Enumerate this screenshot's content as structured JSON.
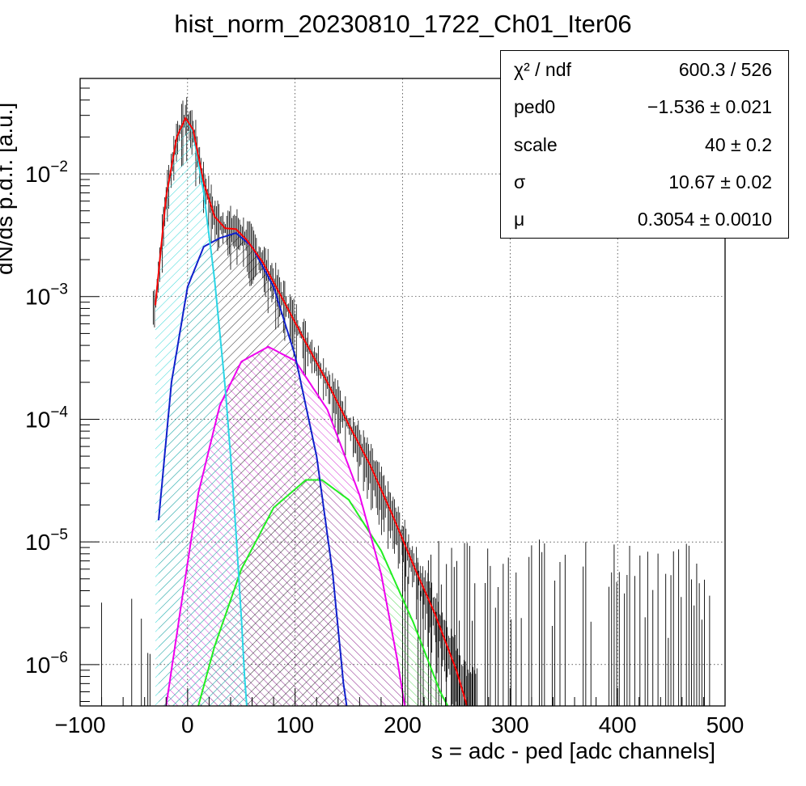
{
  "chart_data": {
    "type": "histogram",
    "title": "hist_norm_20230810_1722_Ch01_Iter06",
    "xlabel": "s = adc - ped [adc channels]",
    "ylabel": "dN/ds p.d.f. [a.u.]",
    "xlim": [
      -100,
      500
    ],
    "ylim": [
      4.6e-07,
      0.06
    ],
    "yscale": "log",
    "grid": true,
    "x_ticks": [
      "−100",
      "0",
      "100",
      "200",
      "300",
      "400",
      "500"
    ],
    "y_ticks": [
      {
        "base": "10",
        "exp": "−6",
        "value": 1e-06
      },
      {
        "base": "10",
        "exp": "−5",
        "value": 1e-05
      },
      {
        "base": "10",
        "exp": "−4",
        "value": 0.0001
      },
      {
        "base": "10",
        "exp": "−3",
        "value": 0.001
      },
      {
        "base": "10",
        "exp": "−2",
        "value": 0.01
      }
    ],
    "fit_parameters": {
      "ped0": -1.536,
      "scale": 40,
      "sigma": 10.67,
      "mu": 0.3054
    },
    "series": [
      {
        "color": "#ff0000",
        "points": [
          [
            -30,
            0.00085
          ],
          [
            -20,
            0.0065
          ],
          [
            -10,
            0.02
          ],
          [
            -2,
            0.0285
          ],
          [
            5,
            0.023
          ],
          [
            15,
            0.0085
          ],
          [
            25,
            0.0045
          ],
          [
            35,
            0.0036
          ],
          [
            45,
            0.00355
          ],
          [
            55,
            0.0029
          ],
          [
            70,
            0.0019
          ],
          [
            90,
            0.0009
          ],
          [
            110,
            0.00042
          ],
          [
            130,
            0.0002
          ],
          [
            150,
            9e-05
          ],
          [
            170,
            4.2e-05
          ],
          [
            190,
            1.7e-05
          ],
          [
            210,
            6.5e-06
          ],
          [
            230,
            2.6e-06
          ],
          [
            250,
            9e-07
          ],
          [
            260,
            4.6e-07
          ]
        ]
      },
      {
        "color": "#00ffff",
        "points": [
          [
            -30,
            0.00085
          ],
          [
            -20,
            0.0063
          ],
          [
            -10,
            0.0198
          ],
          [
            -2,
            0.0285
          ],
          [
            5,
            0.022
          ],
          [
            15,
            0.007
          ],
          [
            25,
            0.0014
          ],
          [
            35,
            0.00018
          ],
          [
            40,
            5e-05
          ],
          [
            45,
            1.2e-05
          ],
          [
            50,
            2.4e-06
          ],
          [
            53,
            8e-07
          ],
          [
            55,
            4.6e-07
          ]
        ]
      },
      {
        "color": "#0000ff",
        "points": [
          [
            -27,
            1.5e-05
          ],
          [
            -15,
            0.0002
          ],
          [
            0,
            0.0012
          ],
          [
            15,
            0.00255
          ],
          [
            30,
            0.003
          ],
          [
            45,
            0.0033
          ],
          [
            60,
            0.00255
          ],
          [
            80,
            0.0012
          ],
          [
            100,
            0.00033
          ],
          [
            120,
            5e-05
          ],
          [
            135,
            5.5e-06
          ],
          [
            145,
            7e-07
          ],
          [
            148,
            4.6e-07
          ]
        ]
      },
      {
        "color": "#ff00ff",
        "points": [
          [
            -20,
            4.6e-07
          ],
          [
            -5,
            3.5e-06
          ],
          [
            10,
            2.5e-05
          ],
          [
            30,
            0.00013
          ],
          [
            50,
            0.000295
          ],
          [
            75,
            0.00039
          ],
          [
            100,
            0.0003
          ],
          [
            130,
            0.00012
          ],
          [
            160,
            2.4e-05
          ],
          [
            180,
            5.5e-06
          ],
          [
            195,
            1.1e-06
          ],
          [
            202,
            4.6e-07
          ]
        ]
      },
      {
        "color": "#00ff00",
        "points": [
          [
            10,
            4.6e-07
          ],
          [
            25,
            1.4e-06
          ],
          [
            50,
            6e-06
          ],
          [
            80,
            1.9e-05
          ],
          [
            110,
            3.2e-05
          ],
          [
            125,
            3.2e-05
          ],
          [
            150,
            2.2e-05
          ],
          [
            180,
            8.5e-06
          ],
          [
            210,
            2.2e-06
          ],
          [
            235,
            6e-07
          ],
          [
            242,
            4.6e-07
          ]
        ]
      }
    ]
  },
  "stats_box": {
    "rows": [
      {
        "name": "χ² / ndf",
        "value": "600.3 / 526"
      },
      {
        "name": "ped0",
        "value": "−1.536 ± 0.021"
      },
      {
        "name": "scale",
        "value": "40 ± 0.2"
      },
      {
        "name": "σ",
        "value": "10.67 ± 0.02"
      },
      {
        "name": "μ",
        "value": "0.3054 ± 0.0010"
      }
    ]
  }
}
